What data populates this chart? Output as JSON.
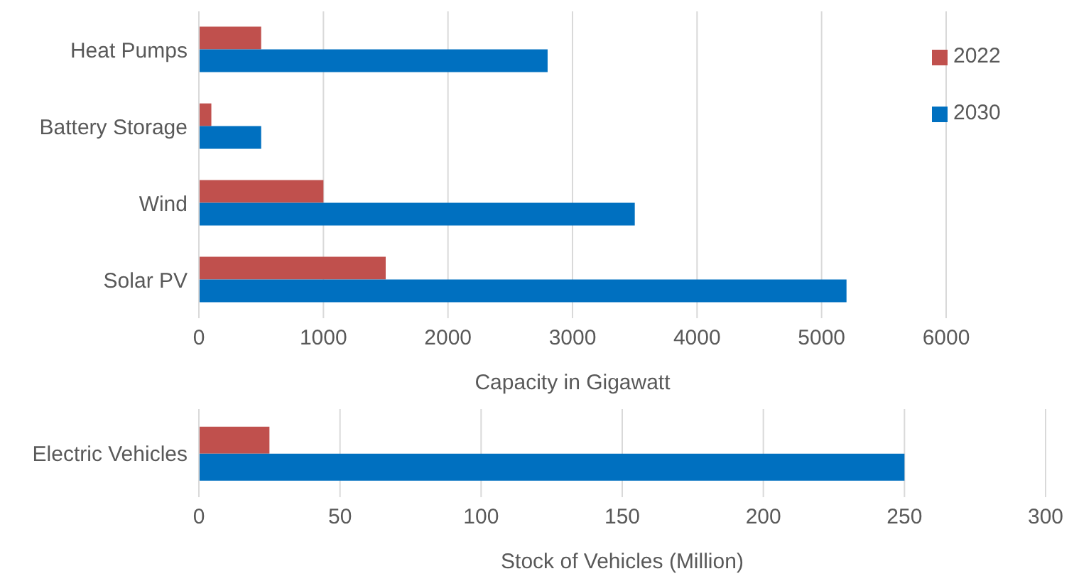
{
  "chart_data": [
    {
      "type": "bar",
      "orientation": "horizontal",
      "categories": [
        "Heat Pumps",
        "Battery Storage",
        "Wind",
        "Solar PV"
      ],
      "xlabel": "Capacity in Gigawatt",
      "xlim": [
        0,
        6000
      ],
      "xticks": [
        0,
        1000,
        2000,
        3000,
        4000,
        5000,
        6000
      ],
      "grid": "x",
      "legend": "top right",
      "series": [
        {
          "name": "2022",
          "color": "#c0504d",
          "values": [
            500,
            100,
            1000,
            1500
          ]
        },
        {
          "name": "2030",
          "color": "#0070c0",
          "values": [
            2800,
            500,
            3500,
            5200
          ]
        }
      ]
    },
    {
      "type": "bar",
      "orientation": "horizontal",
      "categories": [
        "Electric Vehicles"
      ],
      "xlabel": "Stock of Vehicles (Million)",
      "xlim": [
        0,
        300
      ],
      "xticks": [
        0,
        50,
        100,
        150,
        200,
        250,
        300
      ],
      "grid": "x",
      "legend": false,
      "series": [
        {
          "color": "#c0504d",
          "values": [
            25
          ]
        },
        {
          "color": "#0070c0",
          "values": [
            250
          ]
        }
      ]
    }
  ]
}
